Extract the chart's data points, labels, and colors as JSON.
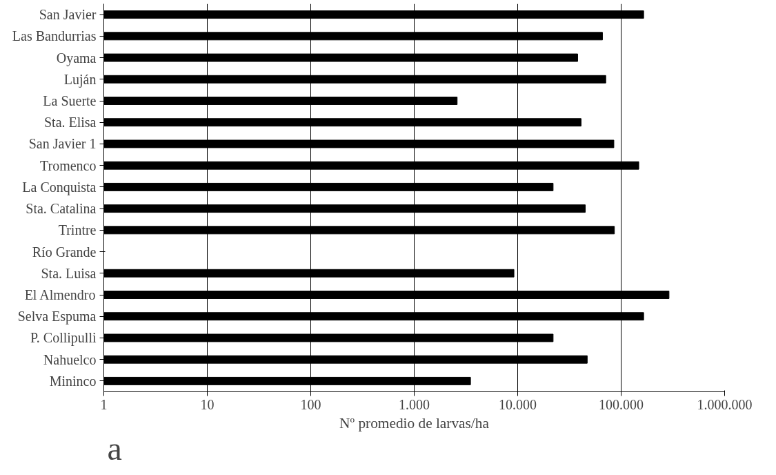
{
  "chart_data": {
    "type": "bar",
    "orientation": "horizontal",
    "log": "x",
    "grid": "x",
    "xlabel": "Nº promedio de larvas/ha",
    "categories": [
      "San Javier",
      "Las Bandurrias",
      "Oyama",
      "Luján",
      "La Suerte",
      "Sta. Elisa",
      "San Javier 1",
      "Tromenco",
      "La Conquista",
      "Sta. Catalina",
      "Trintre",
      "Río Grande",
      "Sta. Luisa",
      "El Almendro",
      "Selva Espuma",
      "P. Collipulli",
      "Nahuelco",
      "Mininco"
    ],
    "values": [
      165000,
      66000,
      38000,
      71000,
      2600,
      41000,
      85000,
      148000,
      22000,
      45000,
      86000,
      null,
      9200,
      290000,
      165000,
      22000,
      47000,
      3500
    ],
    "color": "#000000",
    "xlim": [
      1,
      1000000
    ],
    "xticks": [
      1,
      10,
      100,
      {
        "value": 1000,
        "label": "1.000"
      },
      {
        "value": 10000,
        "label": "10.000"
      },
      {
        "value": 100000,
        "label": "100.000"
      },
      {
        "value": 1000000,
        "label": "1.000.000"
      }
    ],
    "annotations": [
      "a"
    ]
  }
}
